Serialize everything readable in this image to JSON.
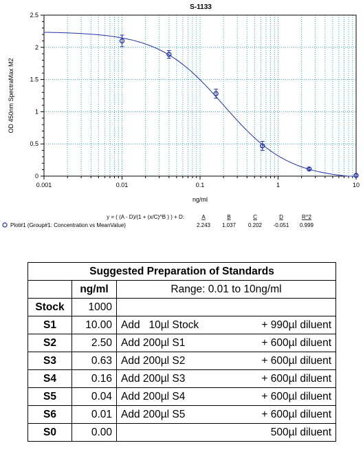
{
  "chart_data": {
    "type": "scatter",
    "title": "S-1133",
    "xlabel": "ng/ml",
    "ylabel": "OD 450nm SpectraMax M2",
    "xscale": "log",
    "xlim": [
      0.001,
      10
    ],
    "ylim": [
      0,
      2.5
    ],
    "x_ticks": [
      "0.001",
      "0.01",
      "0.1",
      "1",
      "10"
    ],
    "y_ticks": [
      "0",
      "0.5",
      "1",
      "1.5",
      "2",
      "2.5"
    ],
    "grid": true,
    "series": [
      {
        "name": "Plot#1 (Group#1: Concentration vs MeanValue)",
        "color": "#1f2fa8",
        "x": [
          0.01,
          0.04,
          0.16,
          0.63,
          2.5,
          10
        ],
        "y": [
          2.1,
          1.89,
          1.28,
          0.47,
          0.11,
          0.01
        ],
        "err": [
          0.09,
          0.06,
          0.07,
          0.07,
          0.02,
          0.02
        ]
      }
    ],
    "fit": {
      "equation": "y = ( (A - D)/(1 + (x/C)^B ) ) + D:",
      "param_names": [
        "A",
        "B",
        "C",
        "D",
        "R^2"
      ],
      "param_values": [
        "2.243",
        "1.037",
        "0.202",
        "-0.051",
        "0.999"
      ],
      "A": 2.243,
      "B": 1.037,
      "C": 0.202,
      "D": -0.051
    }
  },
  "standards_table": {
    "title": "Suggested Preparation of Standards",
    "unit_header": "ng/ml",
    "range_header": "Range: 0.01 to 10ng/ml",
    "rows": [
      {
        "label": "Stock",
        "conc": "1000",
        "add": "",
        "diluent": ""
      },
      {
        "label": "S1",
        "conc": "10.00",
        "add": "Add   10µl Stock",
        "diluent": "+ 990µl diluent"
      },
      {
        "label": "S2",
        "conc": "2.50",
        "add": "Add 200µl S1",
        "diluent": "+ 600µl diluent"
      },
      {
        "label": "S3",
        "conc": "0.63",
        "add": "Add 200µl S2",
        "diluent": "+ 600µl diluent"
      },
      {
        "label": "S4",
        "conc": "0.16",
        "add": "Add 200µl S3",
        "diluent": "+ 600µl diluent"
      },
      {
        "label": "S5",
        "conc": "0.04",
        "add": "Add 200µl S4",
        "diluent": "+ 600µl diluent"
      },
      {
        "label": "S6",
        "conc": "0.01",
        "add": "Add 200µl S5",
        "diluent": "+ 600µl diluent"
      },
      {
        "label": "S0",
        "conc": "0.00",
        "add": "",
        "diluent": "500µl diluent"
      }
    ]
  }
}
